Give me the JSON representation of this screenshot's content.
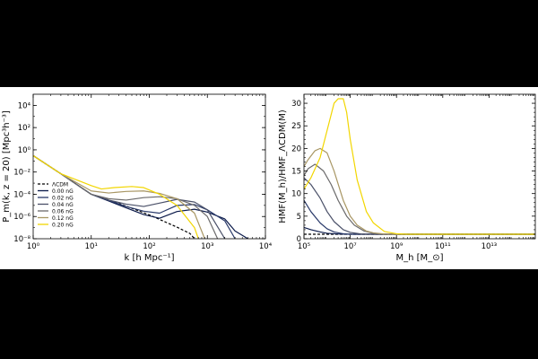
{
  "chart_data": [
    {
      "type": "line",
      "title": "",
      "xlabel": "k [h Mpc⁻¹]",
      "ylabel": "P_m(k, z = 20) [Mpc³h⁻³]",
      "xscale": "log",
      "yscale": "log",
      "xlim": [
        1,
        10000
      ],
      "ylim": [
        1e-08,
        100000.0
      ],
      "x_ticks": [
        {
          "value": 1,
          "label": "10⁰"
        },
        {
          "value": 10,
          "label": "10¹"
        },
        {
          "value": 100,
          "label": "10²"
        },
        {
          "value": 1000,
          "label": "10³"
        },
        {
          "value": 10000,
          "label": "10⁴"
        }
      ],
      "y_ticks": [
        {
          "value": 1e-08,
          "label": "10⁻⁸"
        },
        {
          "value": 1e-06,
          "label": "10⁻⁶"
        },
        {
          "value": 0.0001,
          "label": "10⁻⁴"
        },
        {
          "value": 0.01,
          "label": "10⁻²"
        },
        {
          "value": 1,
          "label": "10⁰"
        },
        {
          "value": 100,
          "label": "10²"
        },
        {
          "value": 10000,
          "label": "10⁴"
        }
      ],
      "legend_position": "lower-left",
      "grid": false,
      "series": [
        {
          "name": "ΛCDM",
          "color": "#000000",
          "dashed": true,
          "x": [
            1,
            3,
            10,
            30,
            100,
            300,
            500,
            600
          ],
          "y": [
            0.3,
            0.007,
            0.0001,
            1.5e-05,
            1.4e-06,
            1.1e-07,
            3e-08,
            1e-08
          ]
        },
        {
          "name": "0.00 nG",
          "color": "#0b1a4a",
          "x": [
            1,
            3,
            10,
            20,
            40,
            80,
            150,
            300,
            600,
            1000,
            2000,
            3000,
            5000
          ],
          "y": [
            0.3,
            0.007,
            0.0001,
            2.5e-05,
            6e-06,
            1.5e-06,
            7e-07,
            2.8e-06,
            4.5e-06,
            2.5e-06,
            6e-07,
            5e-08,
            1e-08
          ]
        },
        {
          "name": "0.02 nG",
          "color": "#2a3a6a",
          "x": [
            1,
            3,
            10,
            20,
            40,
            80,
            150,
            300,
            600,
            1000,
            2000,
            3000
          ],
          "y": [
            0.3,
            0.007,
            0.0001,
            2.8e-05,
            8e-06,
            3e-06,
            2e-06,
            1e-05,
            1.2e-05,
            4e-06,
            4e-07,
            1e-08
          ]
        },
        {
          "name": "0.04 nG",
          "color": "#4a5068",
          "x": [
            1,
            3,
            10,
            20,
            40,
            80,
            150,
            300,
            600,
            1000,
            2000
          ],
          "y": [
            0.3,
            0.007,
            0.0001,
            3e-05,
            1.3e-05,
            8e-06,
            1.6e-05,
            3.5e-05,
            2e-05,
            4e-06,
            1e-08
          ]
        },
        {
          "name": "0.06 nG",
          "color": "#6b6a6b",
          "x": [
            1,
            3,
            10,
            20,
            40,
            80,
            150,
            300,
            600,
            1000,
            1500
          ],
          "y": [
            0.3,
            0.007,
            0.0001,
            4e-05,
            3e-05,
            5e-05,
            6e-05,
            4e-05,
            1e-05,
            1e-06,
            1e-08
          ]
        },
        {
          "name": "0.12 nG",
          "color": "#a89663",
          "x": [
            1,
            3,
            10,
            20,
            40,
            80,
            150,
            300,
            600,
            900
          ],
          "y": [
            0.3,
            0.007,
            0.0002,
            0.00013,
            0.00018,
            0.0002,
            0.00012,
            4e-05,
            2e-06,
            1e-08
          ]
        },
        {
          "name": "0.20 nG",
          "color": "#f2d600",
          "x": [
            1,
            3,
            10,
            15,
            25,
            50,
            80,
            150,
            300,
            600,
            700
          ],
          "y": [
            0.3,
            0.007,
            0.0006,
            0.0003,
            0.0004,
            0.0005,
            0.0004,
            0.0001,
            1e-05,
            1e-07,
            1e-08
          ]
        }
      ]
    },
    {
      "type": "line",
      "title": "",
      "xlabel": "M_h [M_⊙]",
      "ylabel": "HMF(M_h)/HMF_ΛCDM(M)",
      "xscale": "log",
      "yscale": "linear",
      "xlim": [
        100000,
        1000000000000000.0
      ],
      "ylim": [
        0,
        32
      ],
      "x_ticks": [
        {
          "value": 100000,
          "label": "10⁵"
        },
        {
          "value": 10000000.0,
          "label": "10⁷"
        },
        {
          "value": 1000000000.0,
          "label": "10⁹"
        },
        {
          "value": 100000000000.0,
          "label": "10¹¹"
        },
        {
          "value": 10000000000000.0,
          "label": "10¹³"
        }
      ],
      "y_ticks": [
        {
          "value": 0,
          "label": "0"
        },
        {
          "value": 5,
          "label": "5"
        },
        {
          "value": 10,
          "label": "10"
        },
        {
          "value": 15,
          "label": "15"
        },
        {
          "value": 20,
          "label": "20"
        },
        {
          "value": 25,
          "label": "25"
        },
        {
          "value": 30,
          "label": "30"
        }
      ],
      "grid": false,
      "series": [
        {
          "name": "ΛCDM",
          "color": "#000000",
          "dashed": true,
          "x": [
            100000,
            1000000000000000.0
          ],
          "y": [
            1,
            1
          ]
        },
        {
          "name": "0.00 nG",
          "color": "#0b1a4a",
          "x": [
            100000,
            200000,
            500000,
            1000000.0,
            3000000.0,
            10000000.0,
            1000000000000000.0
          ],
          "y": [
            2.5,
            2.0,
            1.5,
            1.2,
            1.05,
            1.0,
            1.0
          ]
        },
        {
          "name": "0.02 nG",
          "color": "#2a3a6a",
          "x": [
            100000,
            200000,
            500000,
            1000000.0,
            2000000.0,
            5000000.0,
            10000000.0,
            30000000.0,
            1000000000000000.0
          ],
          "y": [
            8.5,
            6.0,
            3.5,
            2.2,
            1.5,
            1.1,
            1.0,
            1.0,
            1.0
          ]
        },
        {
          "name": "0.04 nG",
          "color": "#4a5068",
          "x": [
            100000,
            200000,
            500000,
            1000000.0,
            2000000.0,
            5000000.0,
            10000000.0,
            30000000.0,
            100000000.0,
            1000000000000000.0
          ],
          "y": [
            13.5,
            12.0,
            9.0,
            6.0,
            3.8,
            2.0,
            1.4,
            1.05,
            1.0,
            1.0
          ]
        },
        {
          "name": "0.06 nG",
          "color": "#6b6a6b",
          "x": [
            100000,
            150000,
            300000,
            700000,
            1500000.0,
            3000000.0,
            7000000.0,
            15000000.0,
            40000000.0,
            100000000.0,
            300000000.0,
            1000000000000000.0
          ],
          "y": [
            14.0,
            15.5,
            16.5,
            15.0,
            12.0,
            8.5,
            5.0,
            3.0,
            1.7,
            1.2,
            1.0,
            1.0
          ]
        },
        {
          "name": "0.12 nG",
          "color": "#a89663",
          "x": [
            100000,
            150000,
            300000,
            500000,
            1000000.0,
            2000000.0,
            5000000.0,
            10000000.0,
            20000000.0,
            50000000.0,
            100000000.0,
            300000000.0,
            1000000000.0,
            1000000000000000.0
          ],
          "y": [
            16.0,
            17.5,
            19.5,
            20.0,
            19.0,
            15.0,
            8.5,
            5.0,
            3.0,
            1.7,
            1.3,
            1.05,
            1.0,
            1.0
          ]
        },
        {
          "name": "0.20 nG",
          "color": "#f2d600",
          "x": [
            100000,
            200000,
            500000,
            1000000.0,
            2000000.0,
            3000000.0,
            5000000.0,
            7000000.0,
            10000000.0,
            20000000.0,
            50000000.0,
            100000000.0,
            300000000.0,
            1000000000.0,
            3000000000.0,
            1000000000000000.0
          ],
          "y": [
            11.0,
            13.5,
            18.0,
            24.0,
            30.0,
            31.0,
            31.0,
            28.0,
            22.0,
            13.0,
            6.0,
            3.5,
            1.6,
            1.1,
            1.0,
            1.0
          ]
        }
      ]
    }
  ]
}
